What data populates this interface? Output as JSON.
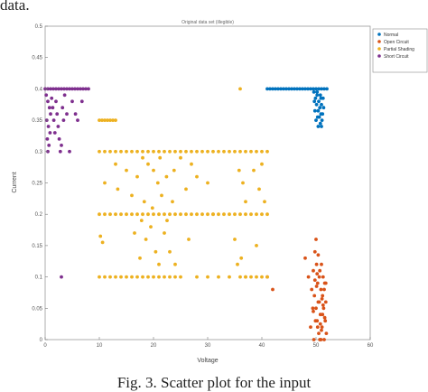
{
  "page_fragment": "data.",
  "caption": "Fig. 3. Scatter plot for the input",
  "chart_data": {
    "type": "scatter",
    "title": "Original data set (illegible)",
    "xlabel": "Voltage",
    "ylabel": "Current",
    "xlim": [
      0,
      60
    ],
    "ylim": [
      0,
      0.5
    ],
    "xticks": [
      0,
      10,
      20,
      30,
      40,
      50,
      60
    ],
    "yticks": [
      0,
      0.05,
      0.1,
      0.15,
      0.2,
      0.25,
      0.3,
      0.35,
      0.4,
      0.45,
      0.5
    ],
    "grid": false,
    "legend_position": "top-right",
    "series": [
      {
        "name": "Normal",
        "color": "#0072BD",
        "points": [
          [
            41.0,
            0.4
          ],
          [
            41.5,
            0.4
          ],
          [
            42.0,
            0.4
          ],
          [
            42.5,
            0.4
          ],
          [
            43.0,
            0.4
          ],
          [
            43.5,
            0.4
          ],
          [
            44.0,
            0.4
          ],
          [
            44.5,
            0.4
          ],
          [
            45.0,
            0.4
          ],
          [
            45.5,
            0.4
          ],
          [
            46.0,
            0.4
          ],
          [
            46.5,
            0.4
          ],
          [
            47.0,
            0.4
          ],
          [
            47.5,
            0.4
          ],
          [
            48.0,
            0.4
          ],
          [
            48.5,
            0.4
          ],
          [
            49.0,
            0.4
          ],
          [
            49.5,
            0.4
          ],
          [
            50.0,
            0.4
          ],
          [
            50.5,
            0.4
          ],
          [
            51.0,
            0.4
          ],
          [
            51.5,
            0.4
          ],
          [
            52.0,
            0.4
          ],
          [
            49.6,
            0.395
          ],
          [
            50.2,
            0.39
          ],
          [
            50.8,
            0.39
          ],
          [
            49.9,
            0.385
          ],
          [
            51.3,
            0.385
          ],
          [
            50.5,
            0.38
          ],
          [
            49.7,
            0.38
          ],
          [
            51.0,
            0.375
          ],
          [
            50.1,
            0.375
          ],
          [
            50.7,
            0.37
          ],
          [
            51.4,
            0.37
          ],
          [
            49.8,
            0.365
          ],
          [
            50.4,
            0.365
          ],
          [
            50.9,
            0.36
          ],
          [
            51.2,
            0.36
          ],
          [
            50.3,
            0.355
          ],
          [
            50.6,
            0.355
          ],
          [
            51.1,
            0.35
          ],
          [
            50.0,
            0.35
          ],
          [
            50.8,
            0.345
          ],
          [
            51.0,
            0.34
          ],
          [
            50.4,
            0.34
          ],
          [
            50.9,
            0.385
          ],
          [
            50.2,
            0.395
          ]
        ]
      },
      {
        "name": "Open Circuit",
        "color": "#D95319",
        "points": [
          [
            41.0,
            0.1
          ],
          [
            42.0,
            0.08
          ],
          [
            48.0,
            0.13
          ],
          [
            48.6,
            0.1
          ],
          [
            49.0,
            0.02
          ],
          [
            49.2,
            0.08
          ],
          [
            49.4,
            0.05
          ],
          [
            49.5,
            0.11
          ],
          [
            49.6,
            0.0
          ],
          [
            49.8,
            0.14
          ],
          [
            50.0,
            0.16
          ],
          [
            50.1,
            0.12
          ],
          [
            50.2,
            0.03
          ],
          [
            50.3,
            0.09
          ],
          [
            50.4,
            0.135
          ],
          [
            50.5,
            0.01
          ],
          [
            50.6,
            0.06
          ],
          [
            50.7,
            0.11
          ],
          [
            50.8,
            0.04
          ],
          [
            50.9,
            0.08
          ],
          [
            51.0,
            0.12
          ],
          [
            51.1,
            0.02
          ],
          [
            51.2,
            0.07
          ],
          [
            51.3,
            0.1
          ],
          [
            51.4,
            0.05
          ],
          [
            51.5,
            0.0
          ],
          [
            51.6,
            0.09
          ],
          [
            51.7,
            0.03
          ],
          [
            51.8,
            0.06
          ],
          [
            51.9,
            0.01
          ],
          [
            49.7,
            0.07
          ],
          [
            50.0,
            0.05
          ],
          [
            50.3,
            0.02
          ],
          [
            50.6,
            0.1
          ],
          [
            50.9,
            0.0
          ],
          [
            51.2,
            0.04
          ],
          [
            51.5,
            0.08
          ],
          [
            49.9,
            0.03
          ],
          [
            50.4,
            0.06
          ],
          [
            51.0,
            0.015
          ],
          [
            51.8,
            0.09
          ],
          [
            49.5,
            0.045
          ],
          [
            50.8,
            0.025
          ],
          [
            51.3,
            0.055
          ],
          [
            50.1,
            0.085
          ],
          [
            50.7,
            0.0
          ],
          [
            51.6,
            0.035
          ],
          [
            50.2,
            0.105
          ],
          [
            49.8,
            0.095
          ],
          [
            51.1,
            0.065
          ]
        ]
      },
      {
        "name": "Partial Shading",
        "color": "#EDB120",
        "points": [
          [
            10.0,
            0.35
          ],
          [
            10.5,
            0.35
          ],
          [
            11.0,
            0.35
          ],
          [
            11.5,
            0.35
          ],
          [
            12.0,
            0.35
          ],
          [
            12.5,
            0.35
          ],
          [
            13.0,
            0.35
          ],
          [
            10.0,
            0.3
          ],
          [
            11.0,
            0.3
          ],
          [
            12.0,
            0.3
          ],
          [
            13.0,
            0.3
          ],
          [
            14.0,
            0.3
          ],
          [
            15.0,
            0.3
          ],
          [
            16.0,
            0.3
          ],
          [
            17.0,
            0.3
          ],
          [
            18.0,
            0.3
          ],
          [
            19.0,
            0.3
          ],
          [
            20.0,
            0.3
          ],
          [
            21.0,
            0.3
          ],
          [
            22.0,
            0.3
          ],
          [
            23.0,
            0.3
          ],
          [
            24.0,
            0.3
          ],
          [
            25.0,
            0.3
          ],
          [
            26.0,
            0.3
          ],
          [
            27.0,
            0.3
          ],
          [
            28.0,
            0.3
          ],
          [
            29.0,
            0.3
          ],
          [
            30.0,
            0.3
          ],
          [
            31.0,
            0.3
          ],
          [
            32.0,
            0.3
          ],
          [
            33.0,
            0.3
          ],
          [
            34.0,
            0.3
          ],
          [
            35.0,
            0.3
          ],
          [
            36.0,
            0.3
          ],
          [
            37.0,
            0.3
          ],
          [
            38.0,
            0.3
          ],
          [
            39.0,
            0.3
          ],
          [
            40.0,
            0.3
          ],
          [
            41.0,
            0.3
          ],
          [
            10.0,
            0.2
          ],
          [
            11.0,
            0.2
          ],
          [
            12.0,
            0.2
          ],
          [
            13.0,
            0.2
          ],
          [
            14.0,
            0.2
          ],
          [
            15.0,
            0.2
          ],
          [
            16.0,
            0.2
          ],
          [
            17.0,
            0.2
          ],
          [
            18.0,
            0.2
          ],
          [
            19.0,
            0.2
          ],
          [
            20.0,
            0.2
          ],
          [
            21.0,
            0.2
          ],
          [
            22.0,
            0.2
          ],
          [
            23.0,
            0.2
          ],
          [
            24.0,
            0.2
          ],
          [
            25.0,
            0.2
          ],
          [
            26.0,
            0.2
          ],
          [
            27.0,
            0.2
          ],
          [
            28.0,
            0.2
          ],
          [
            29.0,
            0.2
          ],
          [
            30.0,
            0.2
          ],
          [
            31.0,
            0.2
          ],
          [
            32.0,
            0.2
          ],
          [
            33.0,
            0.2
          ],
          [
            34.0,
            0.2
          ],
          [
            35.0,
            0.2
          ],
          [
            36.0,
            0.2
          ],
          [
            37.0,
            0.2
          ],
          [
            38.0,
            0.2
          ],
          [
            39.0,
            0.2
          ],
          [
            40.0,
            0.2
          ],
          [
            41.0,
            0.2
          ],
          [
            10.0,
            0.1
          ],
          [
            11.0,
            0.1
          ],
          [
            12.0,
            0.1
          ],
          [
            13.0,
            0.1
          ],
          [
            14.0,
            0.1
          ],
          [
            15.0,
            0.1
          ],
          [
            16.0,
            0.1
          ],
          [
            17.0,
            0.1
          ],
          [
            18.0,
            0.1
          ],
          [
            19.0,
            0.1
          ],
          [
            20.0,
            0.1
          ],
          [
            21.0,
            0.1
          ],
          [
            22.0,
            0.1
          ],
          [
            23.0,
            0.1
          ],
          [
            24.0,
            0.1
          ],
          [
            25.0,
            0.1
          ],
          [
            28.0,
            0.1
          ],
          [
            30.0,
            0.1
          ],
          [
            32.0,
            0.1
          ],
          [
            34.0,
            0.1
          ],
          [
            36.0,
            0.1
          ],
          [
            37.0,
            0.1
          ],
          [
            38.0,
            0.1
          ],
          [
            39.0,
            0.1
          ],
          [
            40.0,
            0.1
          ],
          [
            41.0,
            0.1
          ],
          [
            10.2,
            0.165
          ],
          [
            10.6,
            0.155
          ],
          [
            11.0,
            0.25
          ],
          [
            13.0,
            0.28
          ],
          [
            13.4,
            0.24
          ],
          [
            15.0,
            0.27
          ],
          [
            16.0,
            0.23
          ],
          [
            16.5,
            0.17
          ],
          [
            17.0,
            0.26
          ],
          [
            17.5,
            0.13
          ],
          [
            18.0,
            0.29
          ],
          [
            18.3,
            0.22
          ],
          [
            18.6,
            0.16
          ],
          [
            19.0,
            0.28
          ],
          [
            19.5,
            0.18
          ],
          [
            20.0,
            0.27
          ],
          [
            20.4,
            0.14
          ],
          [
            20.8,
            0.25
          ],
          [
            21.0,
            0.12
          ],
          [
            21.5,
            0.23
          ],
          [
            22.0,
            0.17
          ],
          [
            22.4,
            0.26
          ],
          [
            23.0,
            0.14
          ],
          [
            23.5,
            0.22
          ],
          [
            24.0,
            0.12
          ],
          [
            25.0,
            0.29
          ],
          [
            26.0,
            0.24
          ],
          [
            26.5,
            0.16
          ],
          [
            27.0,
            0.28
          ],
          [
            28.0,
            0.26
          ],
          [
            30.0,
            0.25
          ],
          [
            31.0,
            0.2
          ],
          [
            35.0,
            0.16
          ],
          [
            35.5,
            0.12
          ],
          [
            35.8,
            0.27
          ],
          [
            36.0,
            0.4
          ],
          [
            36.2,
            0.13
          ],
          [
            36.5,
            0.25
          ],
          [
            37.0,
            0.22
          ],
          [
            37.0,
            0.1
          ],
          [
            38.5,
            0.27
          ],
          [
            39.0,
            0.15
          ],
          [
            39.5,
            0.24
          ],
          [
            40.0,
            0.28
          ],
          [
            40.5,
            0.22
          ],
          [
            22.5,
            0.19
          ],
          [
            19.8,
            0.21
          ],
          [
            23.8,
            0.27
          ],
          [
            17.8,
            0.19
          ],
          [
            21.2,
            0.29
          ]
        ]
      },
      {
        "name": "Short Circuit",
        "color": "#7E2F8E",
        "points": [
          [
            0.0,
            0.4
          ],
          [
            0.5,
            0.4
          ],
          [
            1.0,
            0.4
          ],
          [
            1.5,
            0.4
          ],
          [
            2.0,
            0.4
          ],
          [
            2.5,
            0.4
          ],
          [
            3.0,
            0.4
          ],
          [
            3.5,
            0.4
          ],
          [
            4.0,
            0.4
          ],
          [
            4.5,
            0.4
          ],
          [
            5.0,
            0.4
          ],
          [
            5.5,
            0.4
          ],
          [
            6.0,
            0.4
          ],
          [
            6.5,
            0.4
          ],
          [
            7.0,
            0.4
          ],
          [
            7.5,
            0.4
          ],
          [
            8.0,
            0.4
          ],
          [
            0.2,
            0.39
          ],
          [
            0.5,
            0.38
          ],
          [
            0.8,
            0.37
          ],
          [
            1.0,
            0.36
          ],
          [
            0.3,
            0.35
          ],
          [
            0.6,
            0.34
          ],
          [
            0.9,
            0.33
          ],
          [
            0.4,
            0.32
          ],
          [
            0.7,
            0.31
          ],
          [
            0.5,
            0.3
          ],
          [
            1.2,
            0.385
          ],
          [
            1.4,
            0.37
          ],
          [
            1.6,
            0.35
          ],
          [
            1.8,
            0.33
          ],
          [
            2.0,
            0.38
          ],
          [
            2.2,
            0.36
          ],
          [
            2.4,
            0.34
          ],
          [
            2.6,
            0.32
          ],
          [
            2.8,
            0.3
          ],
          [
            3.0,
            0.31
          ],
          [
            3.2,
            0.37
          ],
          [
            3.4,
            0.35
          ],
          [
            3.6,
            0.39
          ],
          [
            4.0,
            0.36
          ],
          [
            4.5,
            0.3
          ],
          [
            5.0,
            0.38
          ],
          [
            5.6,
            0.36
          ],
          [
            6.0,
            0.35
          ],
          [
            6.8,
            0.38
          ],
          [
            3.0,
            0.1
          ]
        ]
      }
    ]
  }
}
